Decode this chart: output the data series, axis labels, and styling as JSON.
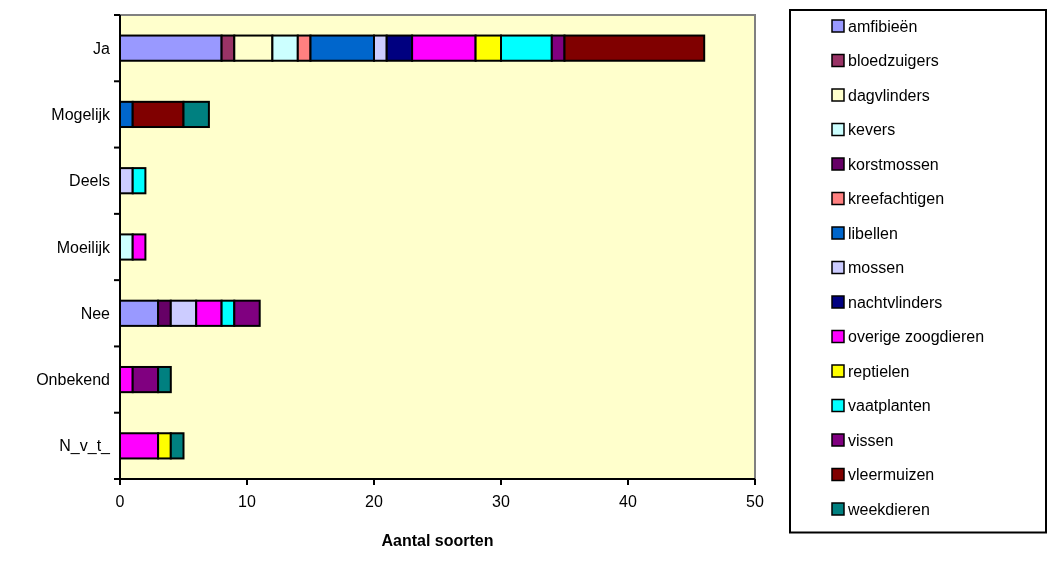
{
  "chart_data": {
    "type": "bar",
    "orientation": "horizontal",
    "stacked": true,
    "xlabel": "Aantal soorten",
    "categories": [
      "Ja",
      "Mogelijk",
      "Deels",
      "Moeilijk",
      "Nee",
      "Onbekend",
      "N_v_t_"
    ],
    "xlim": [
      0,
      50
    ],
    "xticks": [
      0,
      10,
      20,
      30,
      40,
      50
    ],
    "legend": "right",
    "grid": false,
    "series": [
      {
        "name": "amfibieën",
        "color": "#9999ff",
        "values": [
          8,
          0,
          0,
          0,
          3,
          0,
          0
        ]
      },
      {
        "name": "bloedzuigers",
        "color": "#993366",
        "values": [
          1,
          0,
          0,
          0,
          0,
          0,
          0
        ]
      },
      {
        "name": "dagvlinders",
        "color": "#ffffcc",
        "values": [
          3,
          0,
          0,
          0,
          0,
          0,
          0
        ]
      },
      {
        "name": "kevers",
        "color": "#ccffff",
        "values": [
          2,
          0,
          0,
          1,
          0,
          0,
          0
        ]
      },
      {
        "name": "korstmossen",
        "color": "#660066",
        "values": [
          0,
          0,
          0,
          0,
          1,
          0,
          0
        ]
      },
      {
        "name": "kreefachtigen",
        "color": "#ff8080",
        "values": [
          1,
          0,
          0,
          0,
          0,
          0,
          0
        ]
      },
      {
        "name": "libellen",
        "color": "#0066cc",
        "values": [
          5,
          1,
          0,
          0,
          0,
          0,
          0
        ]
      },
      {
        "name": "mossen",
        "color": "#ccccff",
        "values": [
          1,
          0,
          1,
          0,
          2,
          0,
          0
        ]
      },
      {
        "name": "nachtvlinders",
        "color": "#000080",
        "values": [
          2,
          0,
          0,
          0,
          0,
          0,
          0
        ]
      },
      {
        "name": "overige zoogdieren",
        "color": "#ff00ff",
        "values": [
          5,
          0,
          0,
          1,
          2,
          1,
          3
        ]
      },
      {
        "name": "reptielen",
        "color": "#ffff00",
        "values": [
          2,
          0,
          0,
          0,
          0,
          0,
          1
        ]
      },
      {
        "name": "vaatplanten",
        "color": "#00ffff",
        "values": [
          4,
          0,
          1,
          0,
          1,
          0,
          0
        ]
      },
      {
        "name": "vissen",
        "color": "#800080",
        "values": [
          1,
          0,
          0,
          0,
          2,
          2,
          0
        ]
      },
      {
        "name": "vleermuizen",
        "color": "#800000",
        "values": [
          11,
          4,
          0,
          0,
          0,
          0,
          0
        ]
      },
      {
        "name": "weekdieren",
        "color": "#008080",
        "values": [
          0,
          2,
          0,
          0,
          0,
          1,
          1
        ]
      }
    ]
  }
}
